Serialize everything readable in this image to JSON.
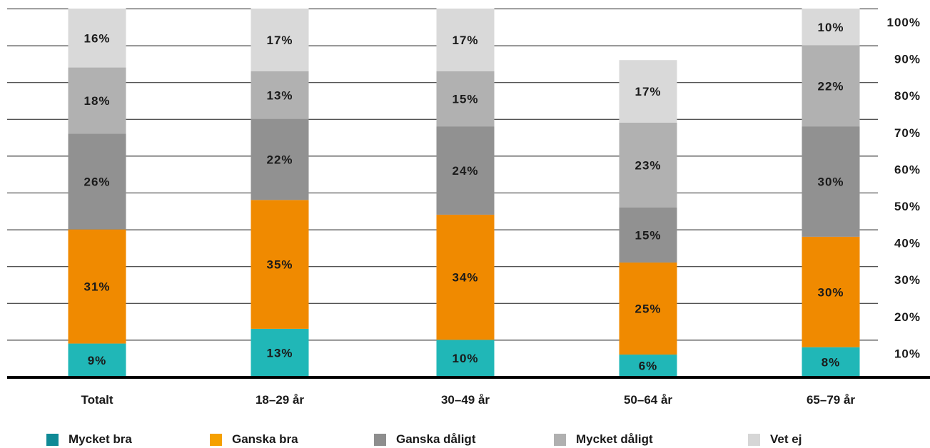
{
  "chart_data": {
    "type": "bar",
    "stacked": true,
    "title": "",
    "xlabel": "",
    "ylabel": "",
    "ylim": [
      0,
      100
    ],
    "y_ticks": [
      "10%",
      "20%",
      "30%",
      "40%",
      "50%",
      "60%",
      "70%",
      "80%",
      "90%",
      "100%"
    ],
    "y_tick_values": [
      10,
      20,
      30,
      40,
      50,
      60,
      70,
      80,
      90,
      100
    ],
    "y_axis_side": "right",
    "grid": true,
    "legend_placement": "bottom",
    "categories": [
      "Totalt",
      "18–29 år",
      "30–49 år",
      "50–64 år",
      "65–79 år"
    ],
    "series": [
      {
        "name": "Mycket bra",
        "color": "#20b7b7",
        "legend_color": "#0f8a96",
        "values": [
          9,
          13,
          10,
          6,
          8
        ],
        "labels": [
          "9%",
          "13%",
          "10%",
          "6%",
          "8%"
        ]
      },
      {
        "name": "Ganska bra",
        "color": "#f08a00",
        "legend_color": "#f5a000",
        "values": [
          31,
          35,
          34,
          25,
          30
        ],
        "labels": [
          "31%",
          "35%",
          "34%",
          "25%",
          "30%"
        ]
      },
      {
        "name": "Ganska dåligt",
        "color": "#919191",
        "legend_color": "#8e8e8e",
        "values": [
          26,
          22,
          24,
          15,
          30
        ],
        "labels": [
          "26%",
          "22%",
          "24%",
          "15%",
          "30%"
        ]
      },
      {
        "name": "Mycket dåligt",
        "color": "#b1b1b1",
        "legend_color": "#b0b0b0",
        "values": [
          18,
          13,
          15,
          23,
          22
        ],
        "labels": [
          "18%",
          "13%",
          "15%",
          "23%",
          "22%"
        ]
      },
      {
        "name": "Vet ej",
        "color": "#d9d9d9",
        "legend_color": "#d6d6d6",
        "values": [
          16,
          17,
          17,
          17,
          10
        ],
        "labels": [
          "16%",
          "17%",
          "17%",
          "17%",
          "10%"
        ]
      }
    ]
  }
}
